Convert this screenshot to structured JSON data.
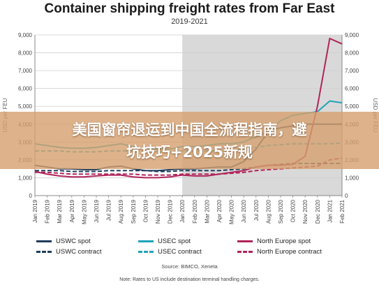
{
  "chart_data": {
    "type": "line",
    "title": "Container shipping freight rates from Far East",
    "subtitle": "2019-2021",
    "ylabel": "USD per FEU",
    "ylim": [
      0,
      9000
    ],
    "yticks": [
      "0",
      "1,000",
      "2,000",
      "3,000",
      "4,000",
      "5,000",
      "6,000",
      "7,000",
      "8,000",
      "9,000"
    ],
    "x": [
      "Jan 2019",
      "Feb 2019",
      "Mar 2019",
      "Apr 2019",
      "May 2019",
      "Jun 2019",
      "Jul 2019",
      "Aug 2019",
      "Sep 2019",
      "Oct 2019",
      "Nov 2019",
      "Dec 2019",
      "Jan 2020",
      "Feb 2020",
      "Mar 2020",
      "Apr 2020",
      "May 2020",
      "Jun 2020",
      "Jul 2020",
      "Aug 2020",
      "Sep 2020",
      "Oct 2020",
      "Nov 2020",
      "Dec 2020",
      "Jan 2021",
      "Feb 2021"
    ],
    "shaded_from": "Jan 2020",
    "series": [
      {
        "name": "USWC spot",
        "color": "#1f3d5c",
        "dash": false,
        "values": [
          1700,
          1600,
          1500,
          1500,
          1450,
          1450,
          1600,
          1650,
          1500,
          1400,
          1400,
          1450,
          1500,
          1500,
          1550,
          1600,
          1600,
          1900,
          2600,
          3600,
          3800,
          3900,
          4000,
          4000,
          4000,
          4000
        ]
      },
      {
        "name": "USWC contract",
        "color": "#1f3d5c",
        "dash": true,
        "values": [
          1400,
          1400,
          1400,
          1350,
          1350,
          1350,
          1400,
          1400,
          1400,
          1400,
          1350,
          1350,
          1400,
          1400,
          1400,
          1400,
          1450,
          1500,
          1600,
          1700,
          1750,
          1800,
          1800,
          1800,
          1800,
          1800
        ]
      },
      {
        "name": "USEC spot",
        "color": "#1fa3b8",
        "dash": false,
        "values": [
          2900,
          2800,
          2700,
          2650,
          2650,
          2700,
          2800,
          2900,
          2750,
          2650,
          2600,
          2600,
          2750,
          2750,
          2800,
          2900,
          2900,
          3000,
          3300,
          3600,
          4200,
          4500,
          4600,
          4700,
          5300,
          5200
        ]
      },
      {
        "name": "USEC contract",
        "color": "#1fa3b8",
        "dash": true,
        "values": [
          2500,
          2500,
          2500,
          2450,
          2450,
          2450,
          2500,
          2500,
          2500,
          2500,
          2450,
          2450,
          2500,
          2500,
          2500,
          2500,
          2550,
          2600,
          2700,
          2800,
          2850,
          2900,
          2900,
          2900,
          2900,
          2950
        ]
      },
      {
        "name": "North Europe spot",
        "color": "#b0245a",
        "dash": false,
        "values": [
          1350,
          1200,
          1100,
          1050,
          1050,
          1100,
          1150,
          1150,
          1050,
          1000,
          1000,
          1050,
          1150,
          1100,
          1100,
          1200,
          1300,
          1400,
          1600,
          1700,
          1700,
          1750,
          2200,
          5000,
          8800,
          8500
        ]
      },
      {
        "name": "North Europe contract",
        "color": "#b0245a",
        "dash": true,
        "values": [
          1300,
          1300,
          1250,
          1200,
          1200,
          1200,
          1200,
          1200,
          1200,
          1150,
          1150,
          1150,
          1200,
          1200,
          1200,
          1200,
          1250,
          1300,
          1400,
          1450,
          1500,
          1550,
          1600,
          1650,
          2000,
          2100
        ]
      }
    ]
  },
  "source": "Source: BIMCO, Xeneta",
  "note": "Note: Rates to US include destination terminal handling charges.",
  "banner": {
    "line1": "美国窗帘退运到中国全流程指南，避",
    "line2": "坑技巧+2025新规"
  }
}
